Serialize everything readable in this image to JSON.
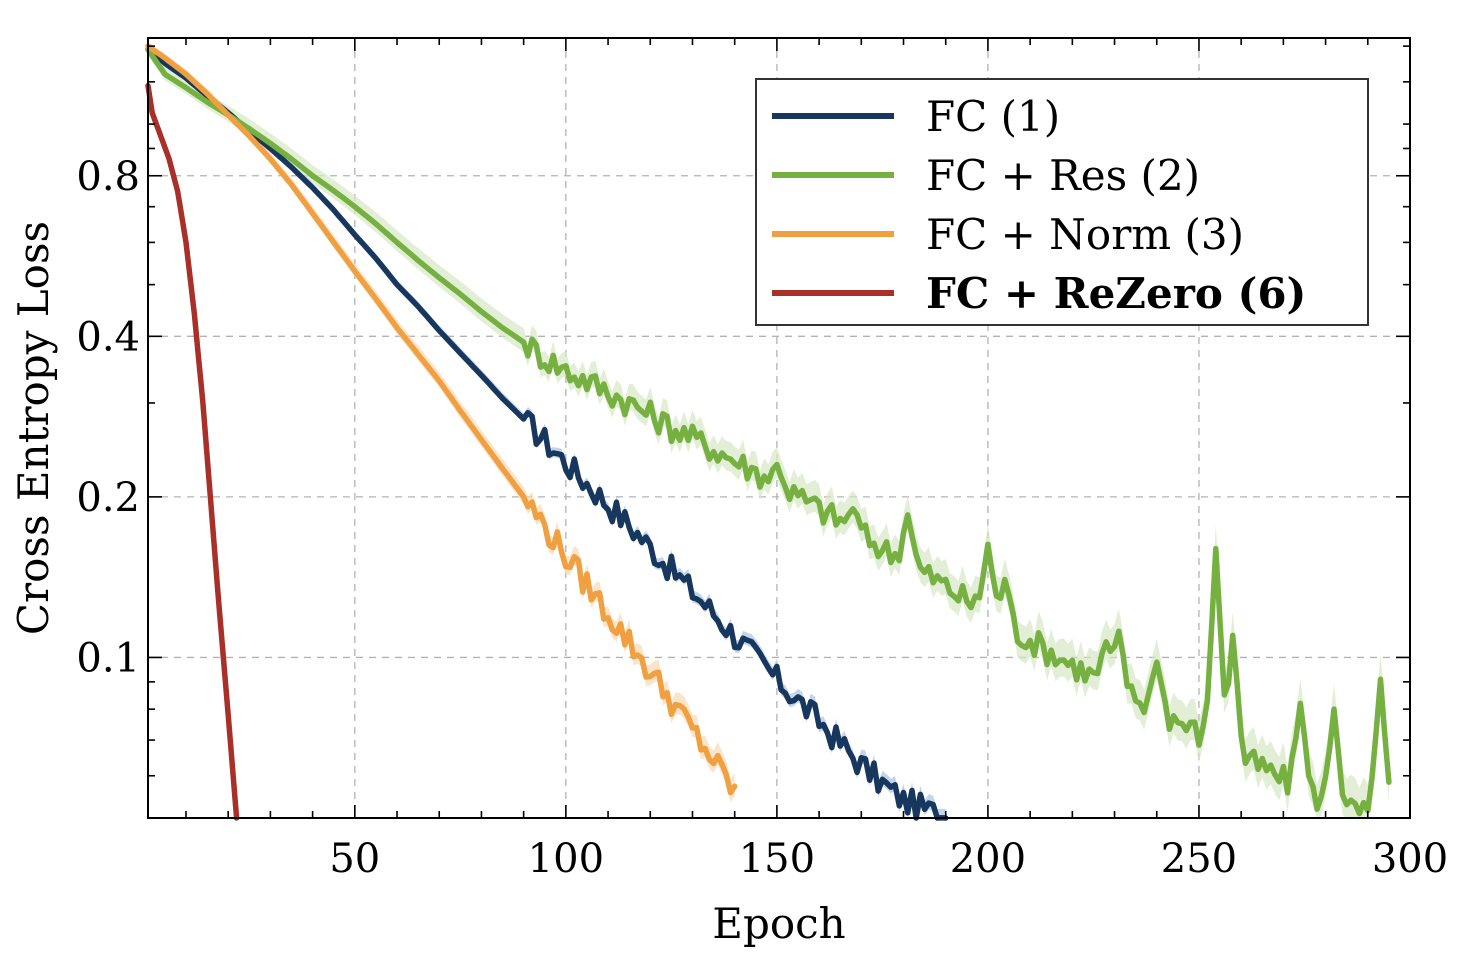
{
  "chart_data": {
    "type": "line",
    "xlabel": "Epoch",
    "ylabel": "Cross Entropy Loss",
    "xlim": [
      1,
      300
    ],
    "ylim": [
      0.05,
      1.45
    ],
    "yscale": "log",
    "xticks": [
      50,
      100,
      150,
      200,
      250,
      300
    ],
    "yticks": [
      0.1,
      0.2,
      0.4,
      0.8
    ],
    "ytick_labels": [
      "0.1",
      "0.2",
      "0.4",
      "0.8"
    ],
    "grid": true,
    "legend_position": "top-right",
    "series": [
      {
        "name": "FC (1)",
        "color": "#17375e",
        "band_color": "#a9c4de",
        "bold": false,
        "x": [
          1,
          5,
          10,
          15,
          20,
          25,
          30,
          35,
          40,
          45,
          50,
          55,
          60,
          65,
          70,
          75,
          80,
          85,
          90,
          95,
          100,
          105,
          110,
          115,
          120,
          125,
          130,
          135,
          140,
          145,
          150,
          155,
          160,
          165,
          170,
          175,
          180,
          185,
          190
        ],
        "y": [
          1.38,
          1.3,
          1.22,
          1.13,
          1.05,
          0.97,
          0.9,
          0.83,
          0.76,
          0.69,
          0.62,
          0.56,
          0.5,
          0.455,
          0.41,
          0.372,
          0.338,
          0.306,
          0.28,
          0.255,
          0.232,
          0.212,
          0.194,
          0.177,
          0.161,
          0.146,
          0.133,
          0.121,
          0.11,
          0.1,
          0.091,
          0.083,
          0.076,
          0.069,
          0.063,
          0.058,
          0.054,
          0.052,
          0.05
        ],
        "spread": 0.04
      },
      {
        "name": "FC + Res (2)",
        "color": "#76b041",
        "band_color": "#d5e8c4",
        "bold": false,
        "x": [
          1,
          5,
          10,
          15,
          20,
          25,
          30,
          35,
          40,
          45,
          50,
          55,
          60,
          65,
          70,
          75,
          80,
          85,
          90,
          95,
          100,
          105,
          110,
          115,
          120,
          125,
          130,
          135,
          140,
          145,
          150,
          155,
          160,
          165,
          170,
          175,
          180,
          185,
          190,
          195,
          200,
          205,
          210,
          215,
          220,
          225,
          230,
          235,
          240,
          245,
          250,
          255,
          260,
          265,
          270,
          275,
          280,
          285,
          290,
          295
        ],
        "y": [
          1.38,
          1.24,
          1.17,
          1.1,
          1.04,
          0.98,
          0.92,
          0.86,
          0.8,
          0.75,
          0.7,
          0.65,
          0.6,
          0.555,
          0.515,
          0.48,
          0.445,
          0.415,
          0.39,
          0.365,
          0.345,
          0.33,
          0.315,
          0.3,
          0.285,
          0.27,
          0.258,
          0.246,
          0.234,
          0.223,
          0.212,
          0.2,
          0.19,
          0.18,
          0.17,
          0.16,
          0.152,
          0.144,
          0.136,
          0.128,
          0.121,
          0.114,
          0.108,
          0.102,
          0.097,
          0.092,
          0.088,
          0.084,
          0.08,
          0.076,
          0.072,
          0.069,
          0.065,
          0.062,
          0.059,
          0.056,
          0.054,
          0.052,
          0.051,
          0.05
        ],
        "spread": 0.12,
        "spikes": [
          [
            150,
            0.23
          ],
          [
            168,
            0.19
          ],
          [
            181,
            0.185
          ],
          [
            200,
            0.163
          ],
          [
            204,
            0.14
          ],
          [
            228,
            0.107
          ],
          [
            231,
            0.112
          ],
          [
            240,
            0.098
          ],
          [
            254,
            0.16
          ],
          [
            258,
            0.11
          ],
          [
            274,
            0.082
          ],
          [
            282,
            0.08
          ],
          [
            293,
            0.091
          ]
        ]
      },
      {
        "name": "FC + Norm (3)",
        "color": "#f0a040",
        "band_color": "#f8d9b3",
        "bold": false,
        "x": [
          1,
          5,
          10,
          15,
          20,
          25,
          30,
          35,
          40,
          45,
          50,
          55,
          60,
          65,
          70,
          75,
          80,
          85,
          90,
          95,
          100,
          105,
          110,
          115,
          120,
          125,
          130,
          135,
          140
        ],
        "y": [
          1.4,
          1.33,
          1.24,
          1.14,
          1.04,
          0.95,
          0.86,
          0.77,
          0.68,
          0.6,
          0.53,
          0.47,
          0.415,
          0.37,
          0.33,
          0.29,
          0.256,
          0.226,
          0.2,
          0.176,
          0.155,
          0.137,
          0.121,
          0.107,
          0.094,
          0.083,
          0.073,
          0.064,
          0.056
        ],
        "spread": 0.06
      },
      {
        "name": "FC + ReZero (6)",
        "color": "#a83029",
        "band_color": "#e6b8b5",
        "bold": true,
        "x": [
          1,
          2,
          4,
          6,
          8,
          10,
          12,
          14,
          16,
          18,
          20,
          22
        ],
        "y": [
          1.18,
          1.05,
          0.95,
          0.86,
          0.75,
          0.6,
          0.44,
          0.3,
          0.19,
          0.12,
          0.078,
          0.05
        ],
        "spread": 0.0
      }
    ]
  }
}
